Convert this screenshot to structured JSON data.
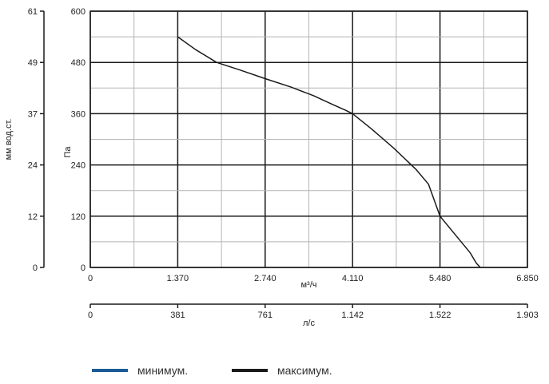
{
  "chart_data": {
    "type": "line",
    "title": "",
    "grid": true,
    "legend_position": "bottom",
    "x_axis": {
      "label": "м³/ч",
      "range": [
        0,
        6850
      ],
      "ticks": [
        0,
        685,
        1370,
        2055,
        2740,
        3425,
        4110,
        4795,
        5480,
        6165,
        6850
      ],
      "tick_labels": [
        "0",
        "",
        "1.370",
        "",
        "2.740",
        "",
        "4.110",
        "",
        "5.480",
        "",
        "6.850"
      ]
    },
    "x2_axis": {
      "label": "л/с",
      "range": [
        0,
        1903
      ],
      "tick_labels": [
        "0",
        "381",
        "761",
        "1.142",
        "1.522",
        "1.903"
      ]
    },
    "y_axis": {
      "label": "Па",
      "range": [
        0,
        600
      ],
      "ticks": [
        0,
        60,
        120,
        180,
        240,
        300,
        360,
        420,
        480,
        540,
        600
      ],
      "tick_labels": [
        "0",
        "",
        "120",
        "",
        "240",
        "",
        "360",
        "",
        "480",
        "",
        "600"
      ]
    },
    "y2_axis": {
      "label": "мм вод.ст.",
      "range": [
        0,
        61
      ],
      "tick_labels": [
        "0",
        "12",
        "24",
        "37",
        "49",
        "61"
      ]
    },
    "series": [
      {
        "name": "минимум.",
        "color": "#1a5a96",
        "points": []
      },
      {
        "name": "максимум.",
        "color": "#1a1a1a",
        "points": [
          [
            1370,
            540
          ],
          [
            1650,
            510
          ],
          [
            1980,
            480
          ],
          [
            2350,
            462
          ],
          [
            2740,
            442
          ],
          [
            3150,
            422
          ],
          [
            3500,
            402
          ],
          [
            3820,
            380
          ],
          [
            4000,
            368
          ],
          [
            4110,
            360
          ],
          [
            4400,
            325
          ],
          [
            4750,
            280
          ],
          [
            5100,
            230
          ],
          [
            5300,
            195
          ],
          [
            5480,
            120
          ],
          [
            5700,
            80
          ],
          [
            5950,
            35
          ],
          [
            6050,
            10
          ],
          [
            6110,
            0
          ]
        ]
      }
    ]
  }
}
